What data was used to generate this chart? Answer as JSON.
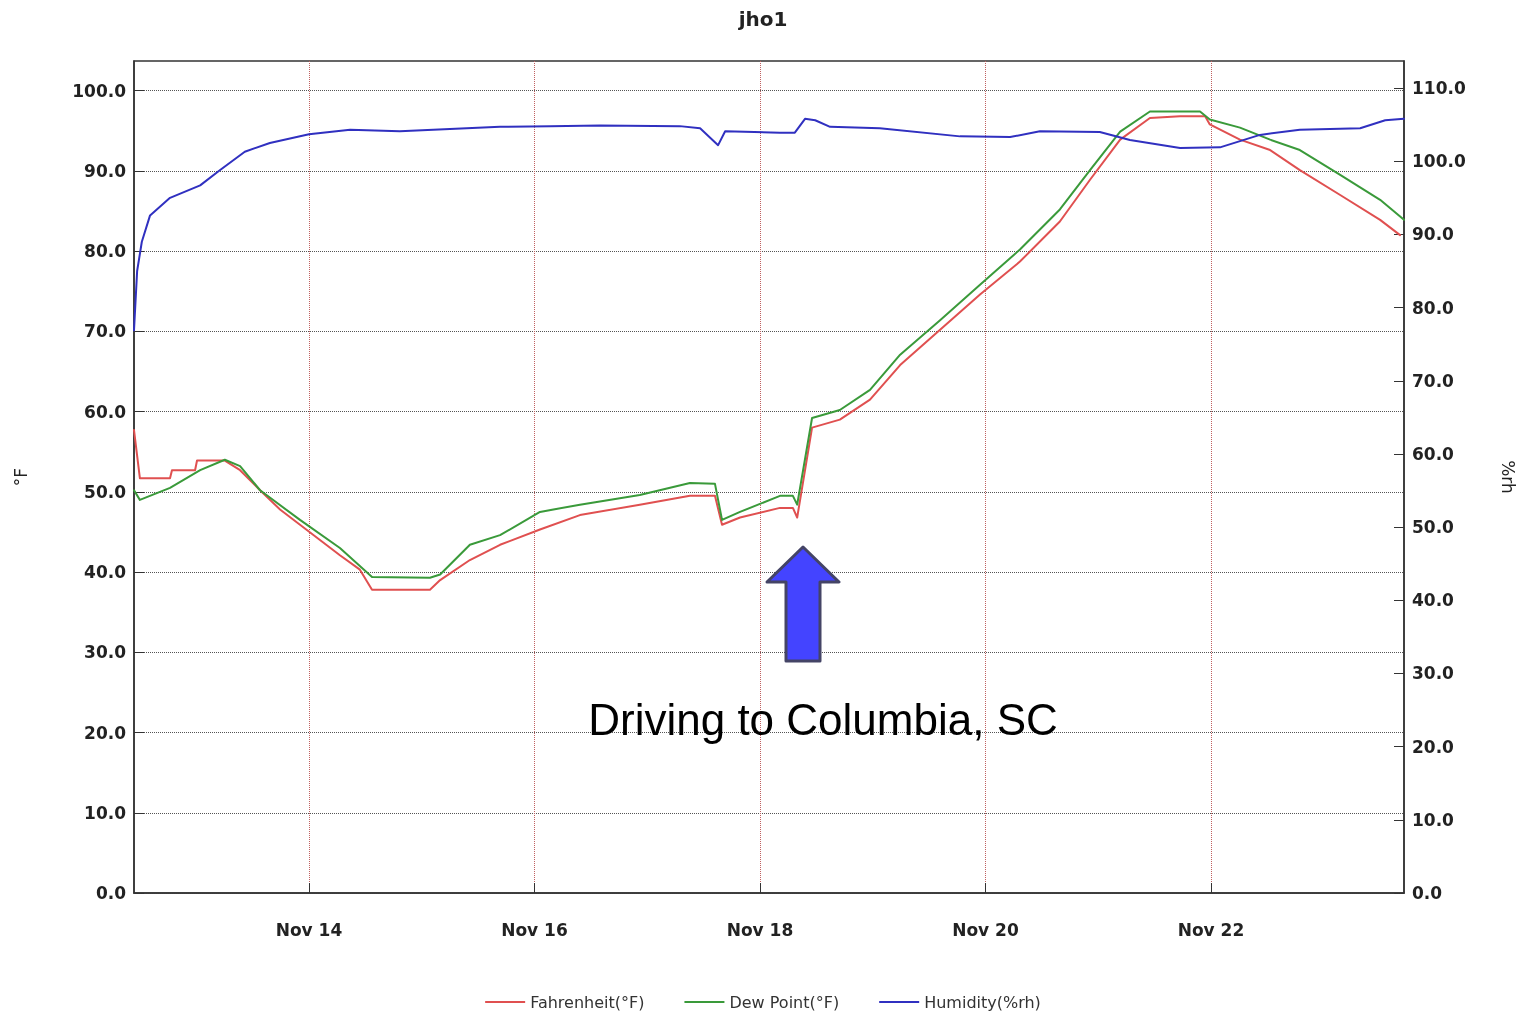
{
  "chart_data": {
    "type": "line",
    "title": "jho1",
    "ylabel": "°F",
    "y2label": "%rh",
    "xlim": [
      "--11-12T10:45",
      "--11-23T17:05"
    ],
    "xticks": [
      {
        "value": "--11-14",
        "label": "Nov 14"
      },
      {
        "value": "--11-16",
        "label": "Nov 16"
      },
      {
        "value": "--11-18",
        "label": "Nov 18"
      },
      {
        "value": "--11-20",
        "label": "Nov 20"
      },
      {
        "value": "--11-22",
        "label": "Nov 22"
      }
    ],
    "ylim": [
      0,
      103.7
    ],
    "yticks": [
      {
        "value": 0,
        "label": "0.0"
      },
      {
        "value": 10,
        "label": "10.0"
      },
      {
        "value": 20,
        "label": "20.0"
      },
      {
        "value": 30,
        "label": "30.0"
      },
      {
        "value": 40,
        "label": "40.0"
      },
      {
        "value": 50,
        "label": "50.0"
      },
      {
        "value": 60,
        "label": "60.0"
      },
      {
        "value": 70,
        "label": "70.0"
      },
      {
        "value": 80,
        "label": "80.0"
      },
      {
        "value": 90,
        "label": "90.0"
      },
      {
        "value": 100,
        "label": "100.0"
      }
    ],
    "y2lim": [
      0,
      113.7
    ],
    "y2ticks": [
      {
        "value": 0,
        "label": "0.0"
      },
      {
        "value": 10,
        "label": "10.0"
      },
      {
        "value": 20,
        "label": "20.0"
      },
      {
        "value": 30,
        "label": "30.0"
      },
      {
        "value": 40,
        "label": "40.0"
      },
      {
        "value": 50,
        "label": "50.0"
      },
      {
        "value": 60,
        "label": "60.0"
      },
      {
        "value": 70,
        "label": "70.0"
      },
      {
        "value": 80,
        "label": "80.0"
      },
      {
        "value": 90,
        "label": "90.0"
      },
      {
        "value": 100,
        "label": "100.0"
      },
      {
        "value": 110,
        "label": "110.0"
      }
    ],
    "grid": true,
    "legend": "bottom",
    "marker": "none",
    "line_style": "solid",
    "annotations": [
      "Driving to Columbia, SC"
    ],
    "series": [
      {
        "name": "Fahrenheit(°F)",
        "color": "#e05050",
        "x": [
          "--11-12T10:45",
          "--11-12T12:00",
          "--11-12T18:25",
          "--11-12T18:50",
          "--11-12T23:45",
          "--11-13T00:10",
          "--11-13T06:05",
          "--11-13T09:20",
          "--11-13T13:35",
          "--11-13T17:50",
          "--11-13T22:05",
          "--11-14T02:20",
          "--11-14T06:35",
          "--11-14T10:50",
          "--11-14T13:25",
          "--11-15T01:45",
          "--11-15T03:55",
          "--11-15T10:15",
          "--11-15T16:40",
          "--11-16T01:10",
          "--11-16T09:40",
          "--11-16T22:25",
          "--11-17T09:05",
          "--11-17T14:25",
          "--11-17T15:55",
          "--11-17T19:45",
          "--11-18T04:15",
          "--11-18T07:00",
          "--11-18T07:55",
          "--11-18T11:05",
          "--11-18T17:00",
          "--11-18T23:25",
          "--11-19T05:50",
          "--11-19T14:20",
          "--11-19T22:50",
          "--11-20T07:20",
          "--11-20T15:50",
          "--11-20T22:15",
          "--11-21T04:40",
          "--11-21T11:00",
          "--11-21T17:25",
          "--11-21T22:45",
          "--11-21T23:45",
          "--11-22T06:10",
          "--11-22T12:35",
          "--11-22T18:55",
          "--11-23T03:30",
          "--11-23T12:00",
          "--11-23T16:15"
        ],
        "values": [
          57.7,
          51.7,
          51.7,
          52.7,
          52.7,
          53.9,
          53.9,
          52.7,
          50.2,
          47.8,
          45.9,
          44,
          42.1,
          40.3,
          37.8,
          37.8,
          39,
          41.5,
          43.4,
          45.3,
          47.1,
          48.4,
          49.5,
          49.5,
          45.9,
          46.8,
          48,
          48,
          46.8,
          58,
          59,
          61.5,
          65.8,
          70.2,
          74.6,
          78.7,
          83.7,
          88.9,
          93.9,
          96.6,
          96.8,
          96.8,
          95.8,
          93.9,
          92.6,
          90.1,
          87,
          83.9,
          82
        ]
      },
      {
        "name": "Dew Point(°F)",
        "color": "#3a9a3a",
        "x": [
          "--11-12T10:45",
          "--11-12T12:00",
          "--11-12T18:25",
          "--11-13T00:50",
          "--11-13T06:05",
          "--11-13T09:20",
          "--11-13T13:35",
          "--11-13T22:05",
          "--11-14T06:35",
          "--11-14T13:25",
          "--11-15T01:45",
          "--11-15T03:55",
          "--11-15T10:15",
          "--11-15T16:40",
          "--11-16T01:10",
          "--11-16T09:40",
          "--11-16T22:25",
          "--11-17T09:05",
          "--11-17T14:25",
          "--11-17T15:55",
          "--11-17T19:45",
          "--11-18T04:15",
          "--11-18T07:00",
          "--11-18T07:55",
          "--11-18T11:05",
          "--11-18T17:00",
          "--11-18T23:25",
          "--11-19T05:50",
          "--11-19T14:20",
          "--11-19T22:50",
          "--11-20T07:20",
          "--11-20T15:50",
          "--11-20T22:15",
          "--11-21T04:40",
          "--11-21T11:00",
          "--11-21T21:40",
          "--11-21T23:45",
          "--11-22T06:10",
          "--11-22T12:35",
          "--11-22T18:55",
          "--11-23T03:30",
          "--11-23T12:00",
          "--11-23T17:05"
        ],
        "values": [
          50.2,
          49,
          50.5,
          52.7,
          54,
          53.2,
          50.2,
          46.5,
          43,
          39.4,
          39.3,
          39.7,
          43.4,
          44.6,
          47.5,
          48.4,
          49.6,
          51.1,
          51,
          46.5,
          47.5,
          49.5,
          49.5,
          48.4,
          59.2,
          60.2,
          62.7,
          67.1,
          71.4,
          75.8,
          80.2,
          85.2,
          90.1,
          94.9,
          97.4,
          97.4,
          96.4,
          95.4,
          93.9,
          92.6,
          89.5,
          86.4,
          83.9
        ]
      },
      {
        "name": "Humidity(%rh)",
        "color": "#3030c0",
        "axis": "y2",
        "x": [
          "--11-12T10:45",
          "--11-12T11:25",
          "--11-12T12:25",
          "--11-12T14:10",
          "--11-12T18:25",
          "--11-13T00:50",
          "--11-13T05:05",
          "--11-13T10:20",
          "--11-13T15:40",
          "--11-14T00:00",
          "--11-14T08:45",
          "--11-14T19:20",
          "--11-15T06:00",
          "--11-15T16:40",
          "--11-16T03:20",
          "--11-16T13:55",
          "--11-17T06:55",
          "--11-17T11:15",
          "--11-17T15:05",
          "--11-17T16:35",
          "--11-18T04:15",
          "--11-18T07:25",
          "--11-18T09:35",
          "--11-18T11:45",
          "--11-18T14:55",
          "--11-19T01:30",
          "--11-19T18:35",
          "--11-20T05:15",
          "--11-20T11:35",
          "--11-21T00:20",
          "--11-21T06:45",
          "--11-21T17:25",
          "--11-22T01:55",
          "--11-22T10:25",
          "--11-22T18:55",
          "--11-23T07:45",
          "--11-23T13:05",
          "--11-23T17:05"
        ],
        "values": [
          76.9,
          85,
          89,
          92.6,
          95,
          96.7,
          98.8,
          101.3,
          102.5,
          103.7,
          104.3,
          104.1,
          104.4,
          104.7,
          104.8,
          104.9,
          104.8,
          104.5,
          102.2,
          104.1,
          103.9,
          103.9,
          105.8,
          105.6,
          104.7,
          104.5,
          103.4,
          103.3,
          104.1,
          104,
          102.9,
          101.8,
          101.9,
          103.6,
          104.3,
          104.5,
          105.6,
          105.8
        ]
      }
    ]
  }
}
